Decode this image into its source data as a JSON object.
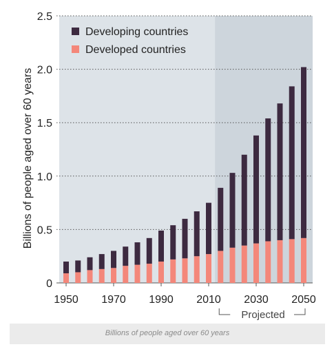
{
  "caption": "Billions of people aged over 60 years",
  "colors": {
    "developing": "#3d2a40",
    "developed": "#f4877a",
    "plot_bg": "#dde3e8",
    "projected_bg": "#cdd5dc",
    "grid": "#555555"
  },
  "chart_data": {
    "type": "bar",
    "stacked": true,
    "ylabel": "Billions of people aged over 60 years",
    "xlabel": "",
    "ylim": [
      0,
      2.5
    ],
    "yticks": [
      "0",
      "0.5",
      "1.0",
      "1.5",
      "2.0",
      "2.5"
    ],
    "ytick_values": [
      0,
      0.5,
      1.0,
      1.5,
      2.0,
      2.5
    ],
    "xtick_labels": [
      "1950",
      "1970",
      "1990",
      "2010",
      "2030",
      "2050"
    ],
    "xtick_values": [
      1950,
      1970,
      1990,
      2010,
      2030,
      2050
    ],
    "grid": "horizontal dotted",
    "legend": "top-left",
    "projected_label": "Projected",
    "projected_from": 2015,
    "x": [
      1950,
      1955,
      1960,
      1965,
      1970,
      1975,
      1980,
      1985,
      1990,
      1995,
      2000,
      2005,
      2010,
      2015,
      2020,
      2025,
      2030,
      2035,
      2040,
      2045,
      2050
    ],
    "series": [
      {
        "name": "Developed countries",
        "values": [
          0.09,
          0.1,
          0.12,
          0.13,
          0.14,
          0.16,
          0.17,
          0.18,
          0.2,
          0.22,
          0.23,
          0.25,
          0.27,
          0.3,
          0.33,
          0.35,
          0.37,
          0.39,
          0.4,
          0.41,
          0.42
        ]
      },
      {
        "name": "Developing countries",
        "values": [
          0.11,
          0.11,
          0.12,
          0.14,
          0.16,
          0.18,
          0.21,
          0.24,
          0.29,
          0.32,
          0.37,
          0.42,
          0.48,
          0.59,
          0.7,
          0.85,
          1.01,
          1.15,
          1.28,
          1.43,
          1.6
        ]
      }
    ]
  }
}
